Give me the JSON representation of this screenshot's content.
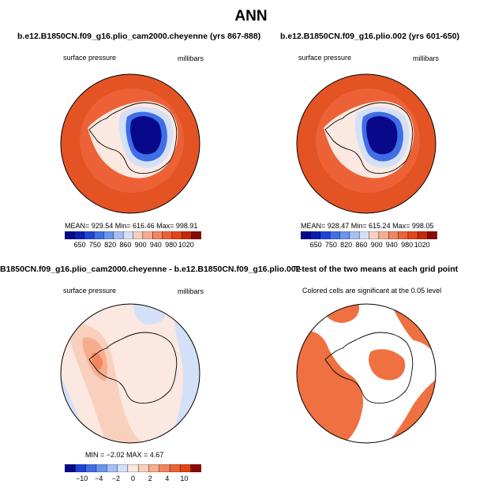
{
  "main_title": "ANN",
  "colors": {
    "blue_scale": [
      "#08088a",
      "#0a1fb0",
      "#1f45d6",
      "#3f6ee6",
      "#6b96ef",
      "#a4bff5",
      "#d4e0f8"
    ],
    "red_scale": [
      "#fbe8e0",
      "#f9d0bd",
      "#f6ad8e",
      "#f28560",
      "#ec6236",
      "#e44517",
      "#c42a0c",
      "#8a0a06"
    ],
    "ocean_outer": "#e45324",
    "ocean_inner": "#ec6236",
    "sig_fill": "#ef7040"
  },
  "chart_data": [
    {
      "type": "heatmap",
      "title": "b.e12.B1850CN.f09_g16.plio_cam2000.cheyenne (yrs 867-888)",
      "left_label": "surface pressure",
      "right_label": "millibars",
      "stats_text": "MEAN= 929.54   Min= 616.46   Max= 998.91",
      "stats": {
        "mean": 929.54,
        "min": 616.46,
        "max": 998.91
      },
      "colorbar_ticks": [
        "650",
        "750",
        "820",
        "860",
        "900",
        "940",
        "980",
        "1020"
      ]
    },
    {
      "type": "heatmap",
      "title": "b.e12.B1850CN.f09_g16.plio.002 (yrs 601-650)",
      "left_label": "surface pressure",
      "right_label": "millibars",
      "stats_text": "MEAN= 928.47   Min= 615.24   Max= 998.05",
      "stats": {
        "mean": 928.47,
        "min": 615.24,
        "max": 998.05
      },
      "colorbar_ticks": [
        "650",
        "750",
        "820",
        "860",
        "900",
        "940",
        "980",
        "1020"
      ]
    },
    {
      "type": "heatmap",
      "title": "B1850CN.f09_g16.plio_cam2000.cheyenne - b.e12.B1850CN.f09_g16.plio.002",
      "left_label": "surface pressure",
      "right_label": "millibars",
      "stats_text": "MIN =  −2.02  MAX =    4.67",
      "stats": {
        "min": -2.02,
        "max": 4.67
      },
      "colorbar_ticks": [
        "−10",
        "−4",
        "−2",
        "0",
        "2",
        "4",
        "10"
      ]
    },
    {
      "type": "heatmap",
      "title": "T-test of the two means at each grid point",
      "note": "Colored cells are significant at the 0.05 level",
      "significance_level": 0.05
    }
  ]
}
